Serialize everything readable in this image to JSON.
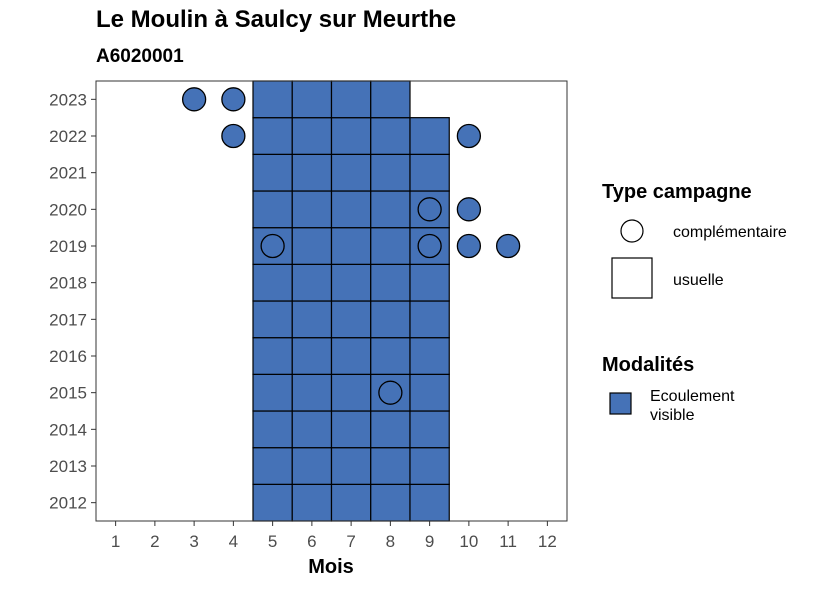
{
  "title": "Le Moulin à Saulcy sur Meurthe",
  "subtitle": "A6020001",
  "chart_data": {
    "type": "heatmap",
    "title": "Le Moulin à Saulcy sur Meurthe",
    "subtitle": "A6020001",
    "xlabel": "Mois",
    "ylabel": "",
    "x_ticks": [
      "1",
      "2",
      "3",
      "4",
      "5",
      "6",
      "7",
      "8",
      "9",
      "10",
      "11",
      "12"
    ],
    "y_ticks": [
      "2012",
      "2013",
      "2014",
      "2015",
      "2016",
      "2017",
      "2018",
      "2019",
      "2020",
      "2021",
      "2022",
      "2023"
    ],
    "xlim": [
      0.5,
      12.5
    ],
    "ylim": [
      2011.5,
      2023.5
    ],
    "grid": false,
    "fill_color": "#4572B7",
    "usuelle": [
      {
        "year": 2012,
        "months": [
          5,
          6,
          7,
          8,
          9
        ]
      },
      {
        "year": 2013,
        "months": [
          5,
          6,
          7,
          8,
          9
        ]
      },
      {
        "year": 2014,
        "months": [
          5,
          6,
          7,
          8,
          9
        ]
      },
      {
        "year": 2015,
        "months": [
          5,
          6,
          7,
          8,
          9
        ]
      },
      {
        "year": 2016,
        "months": [
          5,
          6,
          7,
          8,
          9
        ]
      },
      {
        "year": 2017,
        "months": [
          5,
          6,
          7,
          8,
          9
        ]
      },
      {
        "year": 2018,
        "months": [
          5,
          6,
          7,
          8,
          9
        ]
      },
      {
        "year": 2019,
        "months": [
          5,
          6,
          7,
          8,
          9
        ]
      },
      {
        "year": 2020,
        "months": [
          5,
          6,
          7,
          8,
          9
        ]
      },
      {
        "year": 2021,
        "months": [
          5,
          6,
          7,
          8,
          9
        ]
      },
      {
        "year": 2022,
        "months": [
          5,
          6,
          7,
          8,
          9
        ]
      },
      {
        "year": 2023,
        "months": [
          5,
          6,
          7,
          8
        ]
      }
    ],
    "complementaire": [
      {
        "year": 2023,
        "month": 3,
        "filled": true
      },
      {
        "year": 2023,
        "month": 4,
        "filled": true
      },
      {
        "year": 2022,
        "month": 4,
        "filled": true
      },
      {
        "year": 2022,
        "month": 10,
        "filled": true
      },
      {
        "year": 2020,
        "month": 9,
        "filled": false
      },
      {
        "year": 2020,
        "month": 10,
        "filled": true
      },
      {
        "year": 2019,
        "month": 5,
        "filled": false
      },
      {
        "year": 2019,
        "month": 9,
        "filled": false
      },
      {
        "year": 2019,
        "month": 10,
        "filled": true
      },
      {
        "year": 2019,
        "month": 11,
        "filled": true
      },
      {
        "year": 2015,
        "month": 8,
        "filled": false
      }
    ],
    "legend": {
      "placement": "right",
      "shape_title": "Type campagne",
      "shape_items": [
        "complémentaire",
        "usuelle"
      ],
      "fill_title": "Modalités",
      "fill_items": [
        "Ecoulement visible"
      ]
    }
  }
}
